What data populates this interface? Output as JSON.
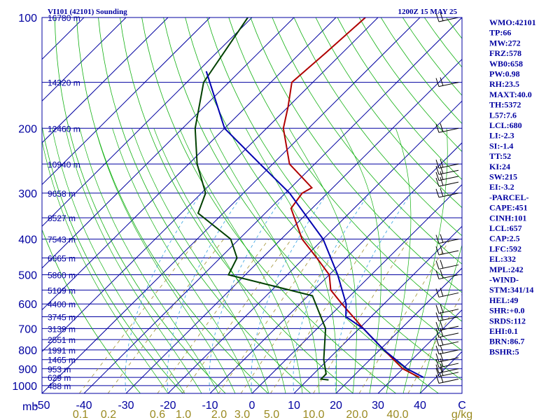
{
  "header": {
    "station": "VI101 (42101) Sounding",
    "time": "1200Z 15 MAY 25"
  },
  "indices": [
    "WMO:42101",
    "TP:66",
    "MW:272",
    "FRZ:578",
    "WB0:658",
    "PW:0.98",
    "RH:23.5",
    "MAXT:40.0",
    "TH:5372",
    "L57:7.6",
    "LCL:680",
    "LI:-2.3",
    "SI:-1.4",
    "TT:52",
    "KI:24",
    "SW:215",
    "EI:-3.2",
    "-PARCEL-",
    "CAPE:451",
    "CINH:101",
    "LCL:657",
    "CAP:2.5",
    "LFC:592",
    "EL:332",
    "MPL:242",
    "-WIND-",
    "STM:341/14",
    "HEL:49",
    "SHR:+0.0",
    "SRDS:112",
    "EHI:0.1",
    "BRN:86.7",
    "BSHR:5"
  ],
  "colors": {
    "isobar": "#0000a0",
    "isotherm": "#0000a0",
    "dry_adiabat": "#10b010",
    "moist_adiabat": "#10b010",
    "mixing_ratio": "#a09030",
    "dry_bulb": "#b00000",
    "dew_point": "#004000",
    "parcel": "#0000b0",
    "wind": "#000000",
    "dashed_blue": "#30a0e0"
  },
  "chart_data": {
    "type": "line",
    "title": "VI101 (42101) Sounding",
    "pressure_unit": "mb",
    "temperature_unit": "C",
    "mixing_ratio_unit": "g/kg",
    "pressure_ticks": [
      100,
      200,
      300,
      400,
      500,
      600,
      700,
      800,
      900,
      1000
    ],
    "height_labels": [
      {
        "p": 100,
        "label": "16780 m"
      },
      {
        "p": 150,
        "label": "14320 m"
      },
      {
        "p": 200,
        "label": "12460 m"
      },
      {
        "p": 250,
        "label": "10940 m"
      },
      {
        "p": 300,
        "label": "9658 m"
      },
      {
        "p": 350,
        "label": "8527 m"
      },
      {
        "p": 400,
        "label": "7543 m"
      },
      {
        "p": 450,
        "label": "6665 m"
      },
      {
        "p": 500,
        "label": "5860 m"
      },
      {
        "p": 550,
        "label": "5109 m"
      },
      {
        "p": 600,
        "label": "4400 m"
      },
      {
        "p": 650,
        "label": "3745 m"
      },
      {
        "p": 700,
        "label": "3139 m"
      },
      {
        "p": 750,
        "label": "2551 m"
      },
      {
        "p": 800,
        "label": "1991 m"
      },
      {
        "p": 850,
        "label": "1465 m"
      },
      {
        "p": 900,
        "label": "953 m"
      },
      {
        "p": 950,
        "label": "629 m"
      },
      {
        "p": 1000,
        "label": "488 m"
      }
    ],
    "temperature_ticks": [
      -50,
      -40,
      -30,
      -20,
      -10,
      0,
      10,
      20,
      30,
      40,
      50
    ],
    "temperature_tick_labels": [
      "-50",
      "-40",
      "-30",
      "-20",
      "-10",
      "0",
      "10",
      "20",
      "30",
      "40",
      "C"
    ],
    "mixing_ratio_ticks": [
      "0.1",
      "0.2",
      "0.6",
      "1.0",
      "2.0",
      "3.0",
      "5.0",
      "10.0",
      "20.0",
      "40.0",
      "g/kg"
    ],
    "mixing_ratio_values": [
      0.1,
      0.2,
      0.6,
      1.0,
      2.0,
      3.0,
      5.0,
      10.0,
      20.0,
      40.0
    ],
    "series": [
      {
        "name": "temperature",
        "points": [
          {
            "p": 100,
            "t": -63
          },
          {
            "p": 125,
            "t": -64
          },
          {
            "p": 150,
            "t": -65
          },
          {
            "p": 175,
            "t": -60
          },
          {
            "p": 200,
            "t": -56
          },
          {
            "p": 250,
            "t": -46
          },
          {
            "p": 290,
            "t": -35
          },
          {
            "p": 300,
            "t": -36
          },
          {
            "p": 330,
            "t": -35
          },
          {
            "p": 400,
            "t": -25
          },
          {
            "p": 450,
            "t": -17
          },
          {
            "p": 500,
            "t": -10
          },
          {
            "p": 550,
            "t": -6
          },
          {
            "p": 600,
            "t": 0
          },
          {
            "p": 700,
            "t": 11
          },
          {
            "p": 800,
            "t": 21
          },
          {
            "p": 900,
            "t": 30
          },
          {
            "p": 950,
            "t": 36
          }
        ]
      },
      {
        "name": "dew_point",
        "points": [
          {
            "p": 100,
            "t": -91
          },
          {
            "p": 150,
            "t": -86
          },
          {
            "p": 200,
            "t": -77
          },
          {
            "p": 250,
            "t": -68
          },
          {
            "p": 300,
            "t": -59
          },
          {
            "p": 340,
            "t": -56
          },
          {
            "p": 400,
            "t": -42
          },
          {
            "p": 450,
            "t": -36
          },
          {
            "p": 500,
            "t": -34
          },
          {
            "p": 570,
            "t": -9
          },
          {
            "p": 700,
            "t": 2
          },
          {
            "p": 850,
            "t": 9
          },
          {
            "p": 930,
            "t": 13
          },
          {
            "p": 960,
            "t": 13
          },
          {
            "p": 965,
            "t": 15
          }
        ]
      },
      {
        "name": "parcel",
        "points": [
          {
            "p": 140,
            "t": -88
          },
          {
            "p": 200,
            "t": -70
          },
          {
            "p": 250,
            "t": -53
          },
          {
            "p": 300,
            "t": -39
          },
          {
            "p": 400,
            "t": -20
          },
          {
            "p": 500,
            "t": -8
          },
          {
            "p": 600,
            "t": 1
          },
          {
            "p": 650,
            "t": 4
          },
          {
            "p": 700,
            "t": 11
          },
          {
            "p": 800,
            "t": 21
          },
          {
            "p": 900,
            "t": 31
          },
          {
            "p": 950,
            "t": 37
          }
        ]
      }
    ],
    "wind_barb_levels": [
      100,
      150,
      200,
      250,
      260,
      270,
      280,
      300,
      400,
      430,
      470,
      500,
      560,
      620,
      650,
      690,
      720,
      760,
      800,
      840,
      870,
      900,
      920,
      960
    ]
  }
}
